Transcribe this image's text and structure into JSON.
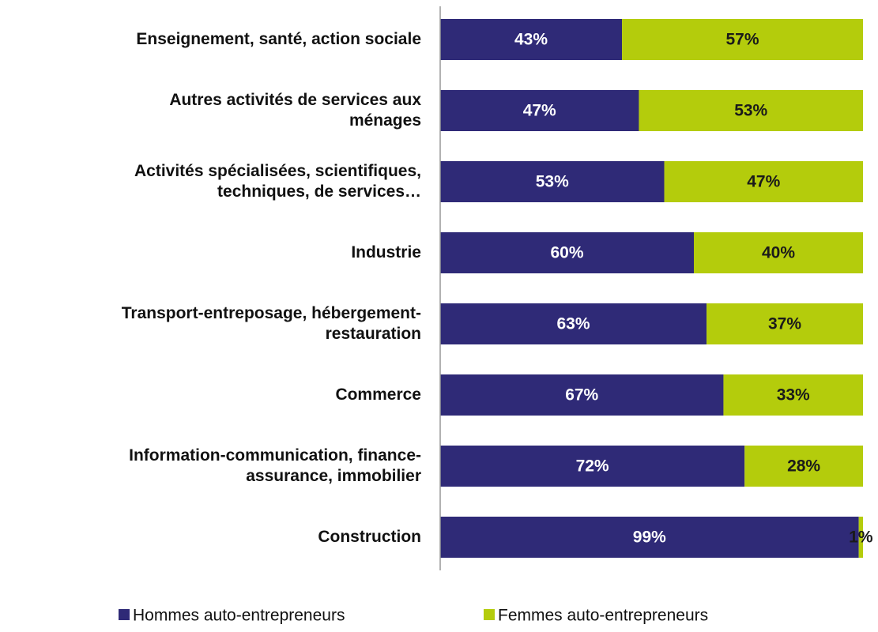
{
  "chart_data": {
    "type": "stacked-bar-horizontal",
    "categories": [
      "Enseignement, santé, action sociale",
      "Autres activités de services aux\nménages",
      "Activités spécialisées, scientifiques,\ntechniques, de services…",
      "Industrie",
      "Transport-entreposage, hébergement-\nrestauration",
      "Commerce",
      "Information-communication, finance-\nassurance, immobilier",
      "Construction"
    ],
    "series": [
      {
        "name": "Hommes auto-entrepreneurs",
        "color": "#2f2a77",
        "label_color": "#ffffff",
        "values": [
          43,
          47,
          53,
          60,
          63,
          67,
          72,
          99
        ],
        "value_labels": [
          "43%",
          "47%",
          "53%",
          "60%",
          "63%",
          "67%",
          "72%",
          "99%"
        ]
      },
      {
        "name": "Femmes auto-entrepreneurs",
        "color": "#b4cc0c",
        "label_color": "#1a1a1a",
        "values": [
          57,
          53,
          47,
          40,
          37,
          33,
          28,
          1
        ],
        "value_labels": [
          "57%",
          "53%",
          "47%",
          "40%",
          "37%",
          "33%",
          "28%",
          "1%"
        ]
      }
    ],
    "xlim": [
      0,
      100
    ]
  }
}
